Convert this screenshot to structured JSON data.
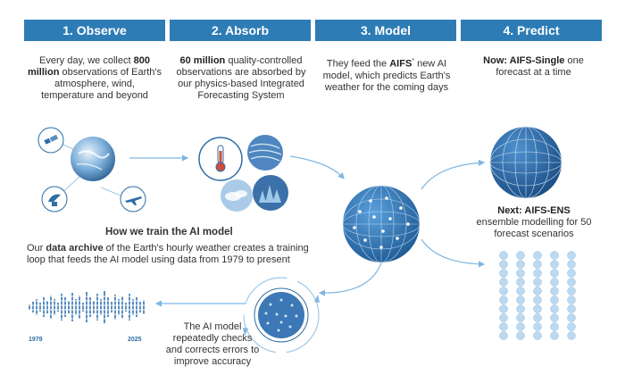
{
  "steps": [
    {
      "label": "1. Observe"
    },
    {
      "label": "2. Absorb"
    },
    {
      "label": "3. Model"
    },
    {
      "label": "4. Predict"
    }
  ],
  "observe": {
    "pre": "Every day, we collect ",
    "bold": "800 million",
    "post": " observations of Earth's atmosphere, wind, temperature and beyond"
  },
  "absorb": {
    "bold": "60 million",
    "post": " quality-controlled observations are absorbed by our physics-based Integrated Forecasting System"
  },
  "model": {
    "pre": "They feed the ",
    "bold": "AIFS",
    "sup": "*",
    "post": " new AI model, which predicts Earth's weather for the coming days"
  },
  "predict_now": {
    "bold": "Now: AIFS-Single",
    "post": " one forecast at a time"
  },
  "predict_next": {
    "bold": "Next: AIFS-ENS",
    "post": " ensemble modelling for 50 forecast scenarios"
  },
  "training": {
    "title": "How we train the AI model",
    "pre": "Our ",
    "bold": "data archive",
    "post": " of the Earth's hourly weather creates a training loop that feeds the AI model using data from 1979 to present",
    "year_start": "1979",
    "year_end": "2025",
    "loop_text": "The AI model repeatedly checks and corrects errors to improve accuracy"
  },
  "colors": {
    "header": "#2e7cb5",
    "accent": "#2e6da4",
    "light": "#9ec8e8",
    "arrow": "#7fb6e0"
  },
  "icons": [
    "satellite-icon",
    "earth-icon",
    "radar-dish-icon",
    "airplane-icon",
    "thermometer-icon",
    "wind-icon",
    "forest-icon",
    "clouds-icon",
    "ai-network-globe-icon",
    "forecast-globe-icon",
    "ensemble-grid-icon",
    "data-archive-icon",
    "training-loop-icon"
  ]
}
